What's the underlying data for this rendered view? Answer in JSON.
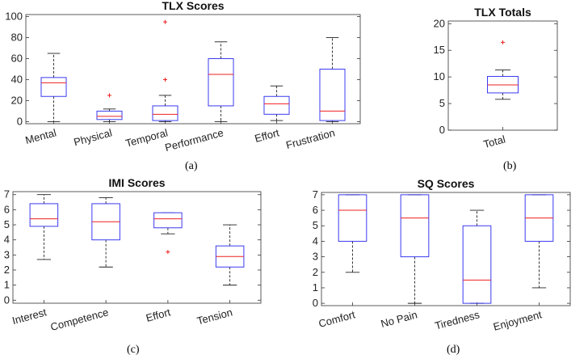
{
  "colors": {
    "box": "#3b3bf0",
    "median": "#ee2020",
    "outlier": "#ee2020",
    "whisker": "#222222",
    "axis": "#333333",
    "text": "#222222"
  },
  "panel_labels": [
    "(a)",
    "(b)",
    "(c)",
    "(d)"
  ],
  "chart_data": [
    {
      "type": "boxplot",
      "title": "TLX Scores",
      "ylim": [
        -2,
        102
      ],
      "yticks": [
        0,
        20,
        40,
        60,
        80,
        100
      ],
      "xtick_rotation": -15,
      "grid": false,
      "categories": [
        "Mental",
        "Physical",
        "Temporal",
        "Performance",
        "Effort",
        "Frustration"
      ],
      "boxes": [
        {
          "min": 0,
          "q1": 24,
          "median": 37,
          "q3": 42,
          "max": 65,
          "outliers": []
        },
        {
          "min": 0,
          "q1": 2,
          "median": 5,
          "q3": 10,
          "max": 12,
          "outliers": [
            25
          ]
        },
        {
          "min": 0,
          "q1": 1,
          "median": 7,
          "q3": 15,
          "max": 25,
          "outliers": [
            40,
            95
          ]
        },
        {
          "min": 0,
          "q1": 15,
          "median": 45,
          "q3": 60,
          "max": 76,
          "outliers": []
        },
        {
          "min": 1,
          "q1": 7,
          "median": 17,
          "q3": 24,
          "max": 34,
          "outliers": []
        },
        {
          "min": 0,
          "q1": 1,
          "median": 10,
          "q3": 50,
          "max": 80,
          "outliers": []
        }
      ]
    },
    {
      "type": "boxplot",
      "title": "TLX Totals",
      "ylim": [
        0,
        20.5
      ],
      "yticks": [
        0,
        5,
        10,
        15,
        20
      ],
      "xtick_rotation": -15,
      "grid": false,
      "categories": [
        "Total"
      ],
      "boxes": [
        {
          "min": 5.8,
          "q1": 7.0,
          "median": 8.5,
          "q3": 10.1,
          "max": 11.3,
          "outliers": [
            16.5
          ]
        }
      ]
    },
    {
      "type": "boxplot",
      "title": "IMI Scores",
      "ylim": [
        -0.2,
        7.2
      ],
      "yticks": [
        0,
        1,
        2,
        3,
        4,
        5,
        6,
        7
      ],
      "xtick_rotation": -15,
      "grid": false,
      "categories": [
        "Interest",
        "Competence",
        "Effort",
        "Tension"
      ],
      "boxes": [
        {
          "min": 2.7,
          "q1": 4.9,
          "median": 5.4,
          "q3": 6.4,
          "max": 7.0,
          "outliers": []
        },
        {
          "min": 2.2,
          "q1": 4.0,
          "median": 5.2,
          "q3": 6.4,
          "max": 6.8,
          "outliers": []
        },
        {
          "min": 4.4,
          "q1": 4.8,
          "median": 5.4,
          "q3": 5.8,
          "max": 5.8,
          "outliers": [
            3.2
          ]
        },
        {
          "min": 1.0,
          "q1": 2.2,
          "median": 2.9,
          "q3": 3.6,
          "max": 5.0,
          "outliers": []
        }
      ]
    },
    {
      "type": "boxplot",
      "title": "SQ Scores",
      "ylim": [
        -0.15,
        7.15
      ],
      "yticks": [
        0,
        1,
        2,
        3,
        4,
        5,
        6,
        7
      ],
      "xtick_rotation": -15,
      "grid": false,
      "categories": [
        "Comfort",
        "No Pain",
        "Tiredness",
        "Enjoyment"
      ],
      "boxes": [
        {
          "min": 2,
          "q1": 4,
          "median": 6,
          "q3": 7,
          "max": 7,
          "outliers": []
        },
        {
          "min": 0,
          "q1": 3,
          "median": 5.5,
          "q3": 7,
          "max": 7,
          "outliers": []
        },
        {
          "min": 0,
          "q1": 0,
          "median": 1.5,
          "q3": 5,
          "max": 6,
          "outliers": []
        },
        {
          "min": 1,
          "q1": 4,
          "median": 5.5,
          "q3": 7,
          "max": 7,
          "outliers": []
        }
      ]
    }
  ]
}
